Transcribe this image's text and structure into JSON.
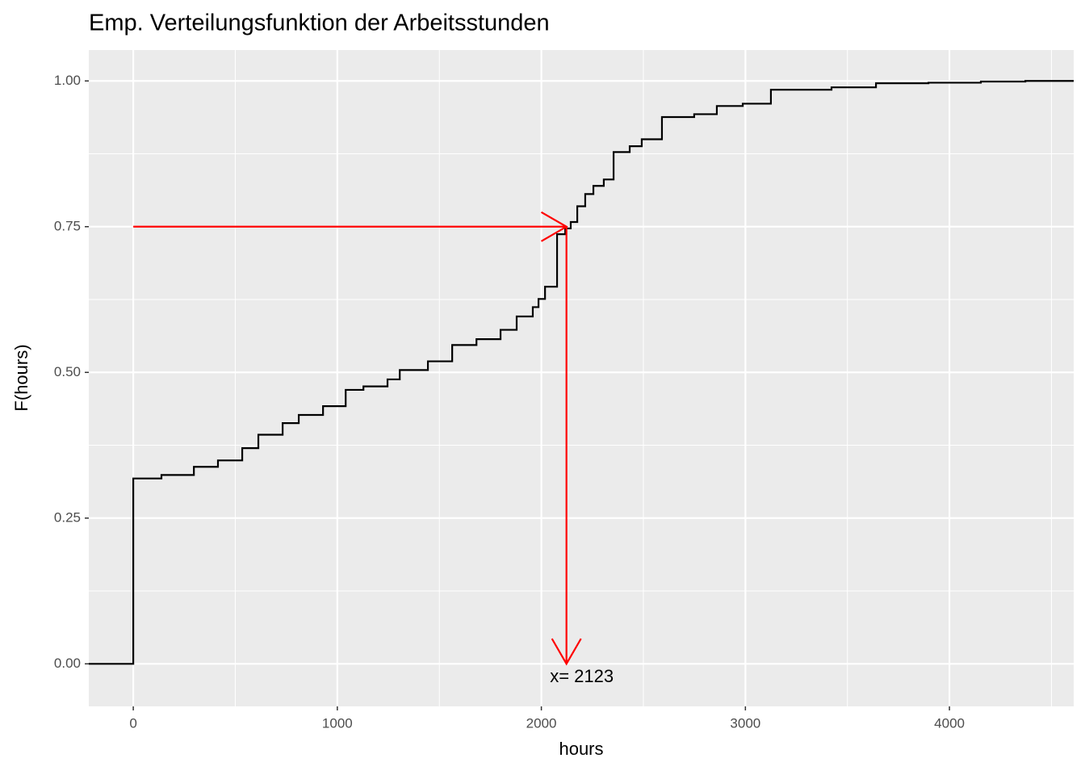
{
  "chart_data": {
    "type": "ecdf",
    "title": "Emp. Verteilungsfunktion der Arbeitsstunden",
    "x_label": "hours",
    "y_label": "F(hours)",
    "x": [
      0,
      138,
      297,
      415,
      534,
      613,
      732,
      811,
      930,
      1041,
      1128,
      1246,
      1306,
      1444,
      1563,
      1682,
      1800,
      1879,
      1958,
      1986,
      2018,
      2077,
      2117,
      2144,
      2176,
      2215,
      2255,
      2306,
      2354,
      2433,
      2492,
      2591,
      2749,
      2860,
      2987,
      3125,
      3422,
      3640,
      3897,
      4154,
      4372
    ],
    "values": [
      0.318,
      0.324,
      0.338,
      0.349,
      0.37,
      0.393,
      0.413,
      0.427,
      0.442,
      0.47,
      0.476,
      0.488,
      0.504,
      0.519,
      0.547,
      0.557,
      0.573,
      0.596,
      0.612,
      0.626,
      0.647,
      0.737,
      0.747,
      0.758,
      0.785,
      0.806,
      0.82,
      0.831,
      0.878,
      0.888,
      0.9,
      0.938,
      0.943,
      0.957,
      0.961,
      0.985,
      0.989,
      0.996,
      0.997,
      0.999,
      1.0
    ],
    "color": "#000000",
    "pad": true,
    "xlim": [
      -218,
      4609
    ],
    "ylim": [
      -0.073,
      1.053
    ],
    "xticks": [
      0,
      1000,
      2000,
      3000,
      4000
    ],
    "yticks": [
      {
        "value": 0,
        "label": "0.00"
      },
      {
        "value": 0.25,
        "label": "0.25"
      },
      {
        "value": 0.5,
        "label": "0.50"
      },
      {
        "value": 0.75,
        "label": "0.75"
      },
      {
        "value": 1,
        "label": "1.00"
      }
    ],
    "x_minor_ticks": [
      500,
      1500,
      2500,
      3500,
      4500
    ],
    "y_minor_ticks": [
      0.125,
      0.375,
      0.625,
      0.875
    ],
    "grid": true,
    "arrows": [
      {
        "x": 0,
        "y": 0.75,
        "xend": 2123,
        "yend": 0.75
      },
      {
        "x": 2123,
        "y": 0.75,
        "xend": 2123,
        "yend": 0
      }
    ],
    "arrow_color": "#ff0000",
    "annotation": "x= 2123"
  }
}
